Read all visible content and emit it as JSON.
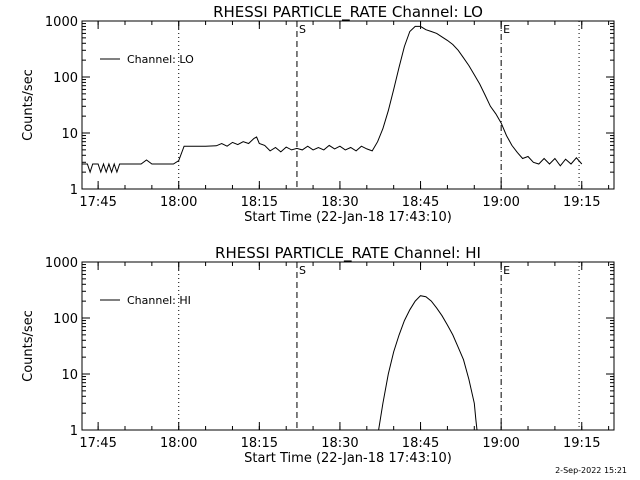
{
  "footer_date": "2-Sep-2022 15:21",
  "chart_data": [
    {
      "type": "line",
      "title": "RHESSI PARTICLE_RATE Channel: LO",
      "xlabel": "Start Time (22-Jan-18 17:43:10)",
      "ylabel": "Counts/sec",
      "y_scale": "log",
      "ylim": [
        1,
        1000
      ],
      "xlim_minutes": [
        -3,
        96
      ],
      "x_ticks": [
        "17:45",
        "18:00",
        "18:15",
        "18:30",
        "18:45",
        "19:00",
        "19:15"
      ],
      "y_ticks": [
        "1",
        "10",
        "100",
        "1000"
      ],
      "legend": "Channel: LO",
      "legend_position": "top-left",
      "markers": [
        {
          "label": "S",
          "style": "dashed",
          "time_min": 37
        },
        {
          "label": "E",
          "style": "dashdot",
          "time_min": 75
        }
      ],
      "dotted_lines_min": [
        15,
        89.5
      ],
      "series": [
        {
          "name": "Channel: LO",
          "points": [
            [
              -3,
              2.8
            ],
            [
              -2,
              2.8
            ],
            [
              -1.5,
              2.0
            ],
            [
              -1,
              2.8
            ],
            [
              0,
              2.8
            ],
            [
              0.5,
              2.0
            ],
            [
              1,
              2.8
            ],
            [
              1.5,
              2.0
            ],
            [
              2,
              2.8
            ],
            [
              2.5,
              2.0
            ],
            [
              3,
              2.8
            ],
            [
              3.5,
              2.0
            ],
            [
              4,
              2.8
            ],
            [
              5,
              2.8
            ],
            [
              8,
              2.8
            ],
            [
              9,
              3.3
            ],
            [
              10,
              2.8
            ],
            [
              14,
              2.8
            ],
            [
              15,
              3.2
            ],
            [
              16,
              5.8
            ],
            [
              18,
              5.8
            ],
            [
              20,
              5.8
            ],
            [
              22,
              5.9
            ],
            [
              23,
              6.5
            ],
            [
              24,
              5.8
            ],
            [
              25,
              6.8
            ],
            [
              26,
              6.2
            ],
            [
              27,
              7.0
            ],
            [
              28,
              6.5
            ],
            [
              29,
              8.0
            ],
            [
              29.5,
              8.5
            ],
            [
              30,
              6.5
            ],
            [
              31,
              6.0
            ],
            [
              32,
              4.8
            ],
            [
              33,
              5.5
            ],
            [
              34,
              4.6
            ],
            [
              35,
              5.6
            ],
            [
              36,
              5.0
            ],
            [
              37,
              5.3
            ],
            [
              38,
              5.0
            ],
            [
              39,
              5.8
            ],
            [
              40,
              5.0
            ],
            [
              41,
              5.5
            ],
            [
              42,
              5.0
            ],
            [
              43,
              6.0
            ],
            [
              44,
              5.2
            ],
            [
              45,
              5.8
            ],
            [
              46,
              5.0
            ],
            [
              47,
              5.5
            ],
            [
              48,
              4.8
            ],
            [
              49,
              5.8
            ],
            [
              50,
              5.2
            ],
            [
              51,
              4.8
            ],
            [
              52,
              7.0
            ],
            [
              53,
              12
            ],
            [
              54,
              25
            ],
            [
              55,
              60
            ],
            [
              56,
              150
            ],
            [
              57,
              350
            ],
            [
              58,
              650
            ],
            [
              59,
              800
            ],
            [
              60,
              800
            ],
            [
              61,
              700
            ],
            [
              62,
              650
            ],
            [
              63,
              600
            ],
            [
              64,
              520
            ],
            [
              65,
              450
            ],
            [
              66,
              380
            ],
            [
              67,
              300
            ],
            [
              68,
              220
            ],
            [
              69,
              160
            ],
            [
              70,
              110
            ],
            [
              71,
              75
            ],
            [
              72,
              48
            ],
            [
              73,
              30
            ],
            [
              74,
              22
            ],
            [
              75,
              15
            ],
            [
              76,
              9
            ],
            [
              77,
              6
            ],
            [
              78,
              4.5
            ],
            [
              79,
              3.5
            ],
            [
              80,
              3.8
            ],
            [
              81,
              3.0
            ],
            [
              82,
              2.8
            ],
            [
              83,
              3.5
            ],
            [
              84,
              2.8
            ],
            [
              85,
              3.5
            ],
            [
              86,
              2.6
            ],
            [
              87,
              3.4
            ],
            [
              88,
              2.8
            ],
            [
              89,
              3.6
            ],
            [
              90,
              2.8
            ]
          ]
        }
      ]
    },
    {
      "type": "line",
      "title": "RHESSI PARTICLE_RATE Channel: HI",
      "xlabel": "Start Time (22-Jan-18 17:43:10)",
      "ylabel": "Counts/sec",
      "y_scale": "log",
      "ylim": [
        1,
        1000
      ],
      "xlim_minutes": [
        -3,
        96
      ],
      "x_ticks": [
        "17:45",
        "18:00",
        "18:15",
        "18:30",
        "18:45",
        "19:00",
        "19:15"
      ],
      "y_ticks": [
        "1",
        "10",
        "100",
        "1000"
      ],
      "legend": "Channel: HI",
      "legend_position": "top-left",
      "markers": [
        {
          "label": "S",
          "style": "dashed",
          "time_min": 37
        },
        {
          "label": "E",
          "style": "dashdot",
          "time_min": 75
        }
      ],
      "dotted_lines_min": [
        15,
        89.5
      ],
      "series": [
        {
          "name": "Channel: HI",
          "points": [
            [
              52.2,
              1.0
            ],
            [
              53,
              3
            ],
            [
              54,
              10
            ],
            [
              55,
              25
            ],
            [
              56,
              50
            ],
            [
              57,
              90
            ],
            [
              58,
              140
            ],
            [
              59,
              200
            ],
            [
              60,
              250
            ],
            [
              61,
              240
            ],
            [
              62,
              200
            ],
            [
              63,
              150
            ],
            [
              64,
              110
            ],
            [
              65,
              75
            ],
            [
              66,
              50
            ],
            [
              67,
              30
            ],
            [
              68,
              18
            ],
            [
              69,
              8
            ],
            [
              70,
              3
            ],
            [
              70.3,
              1.5
            ],
            [
              70.5,
              1.0
            ]
          ]
        }
      ]
    }
  ]
}
